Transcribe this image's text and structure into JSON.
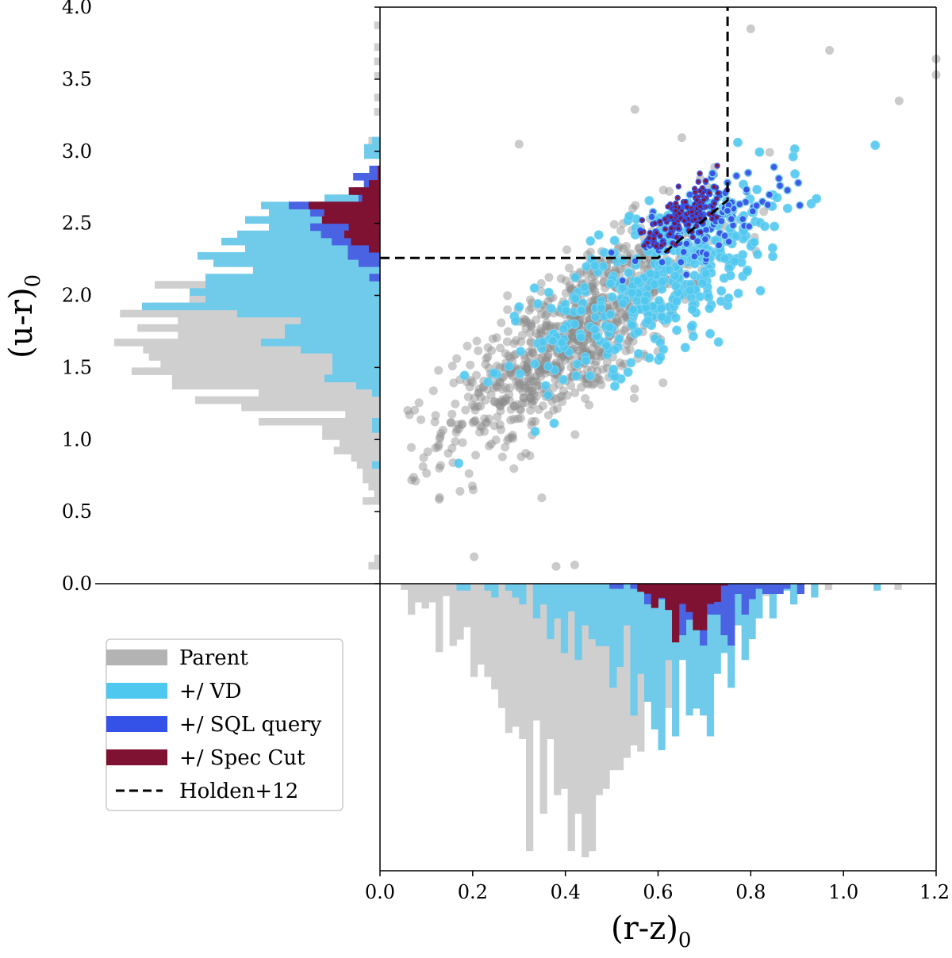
{
  "chart_data": {
    "type": "scatter",
    "xlabel_main": "(r-z)",
    "xlabel_sub": "0",
    "ylabel_main": "(u-r)",
    "ylabel_sub": "0",
    "xlim": [
      0.0,
      1.2
    ],
    "ylim": [
      0.0,
      4.0
    ],
    "x_ticks": [
      "0.0",
      "0.2",
      "0.4",
      "0.6",
      "0.8",
      "1.0",
      "1.2"
    ],
    "y_ticks": [
      "0.0",
      "0.5",
      "1.0",
      "1.5",
      "2.0",
      "2.5",
      "3.0",
      "3.5",
      "4.0"
    ],
    "legend_position": "lower-left",
    "series": [
      {
        "name": "Parent",
        "color": "#9e9e9e",
        "hist_color": "#cfcfcf",
        "mean_x": 0.42,
        "mean_y": 1.72,
        "sd_x": 0.14,
        "sd_y": 0.4,
        "count": 900
      },
      {
        "name": "+/ VD",
        "color": "#4fc8ef",
        "hist_color": "#70cbea",
        "mean_x": 0.62,
        "mean_y": 2.15,
        "sd_x": 0.14,
        "sd_y": 0.35,
        "count": 420
      },
      {
        "name": "+/ SQL query",
        "color": "#3552e8",
        "hist_color": "#4a63e3",
        "mean_x": 0.7,
        "mean_y": 2.5,
        "sd_x": 0.09,
        "sd_y": 0.18,
        "count": 110
      },
      {
        "name": "+/ Spec Cut",
        "color": "#8b1530",
        "hist_color": "#7f1233",
        "mean_x": 0.66,
        "mean_y": 2.56,
        "sd_x": 0.045,
        "sd_y": 0.12,
        "count": 160
      }
    ],
    "holden_line": {
      "name": "Holden+12",
      "x": [
        0.0,
        0.6,
        0.75,
        0.75
      ],
      "y": [
        2.26,
        2.26,
        2.66,
        4.0
      ]
    },
    "notable_points": [
      {
        "x": 0.8,
        "y": 3.85
      },
      {
        "x": 0.97,
        "y": 3.7
      },
      {
        "x": 1.2,
        "y": 3.64
      },
      {
        "x": 1.2,
        "y": 3.53
      },
      {
        "x": 1.12,
        "y": 3.35
      },
      {
        "x": 0.3,
        "y": 3.05
      },
      {
        "x": 0.55,
        "y": 3.29
      },
      {
        "x": 0.42,
        "y": 0.13
      },
      {
        "x": 0.38,
        "y": 0.12
      }
    ]
  },
  "legend": {
    "items": [
      {
        "label": "Parent",
        "color": "#b3b3b3",
        "style": "patch"
      },
      {
        "label": "+/ VD",
        "color": "#4fc8ef",
        "style": "patch"
      },
      {
        "label": "+/ SQL query",
        "color": "#3552e8",
        "style": "patch"
      },
      {
        "label": "+/ Spec Cut",
        "color": "#7f1233",
        "style": "patch"
      },
      {
        "label": "Holden+12",
        "color": "#000000",
        "style": "dashed"
      }
    ]
  }
}
